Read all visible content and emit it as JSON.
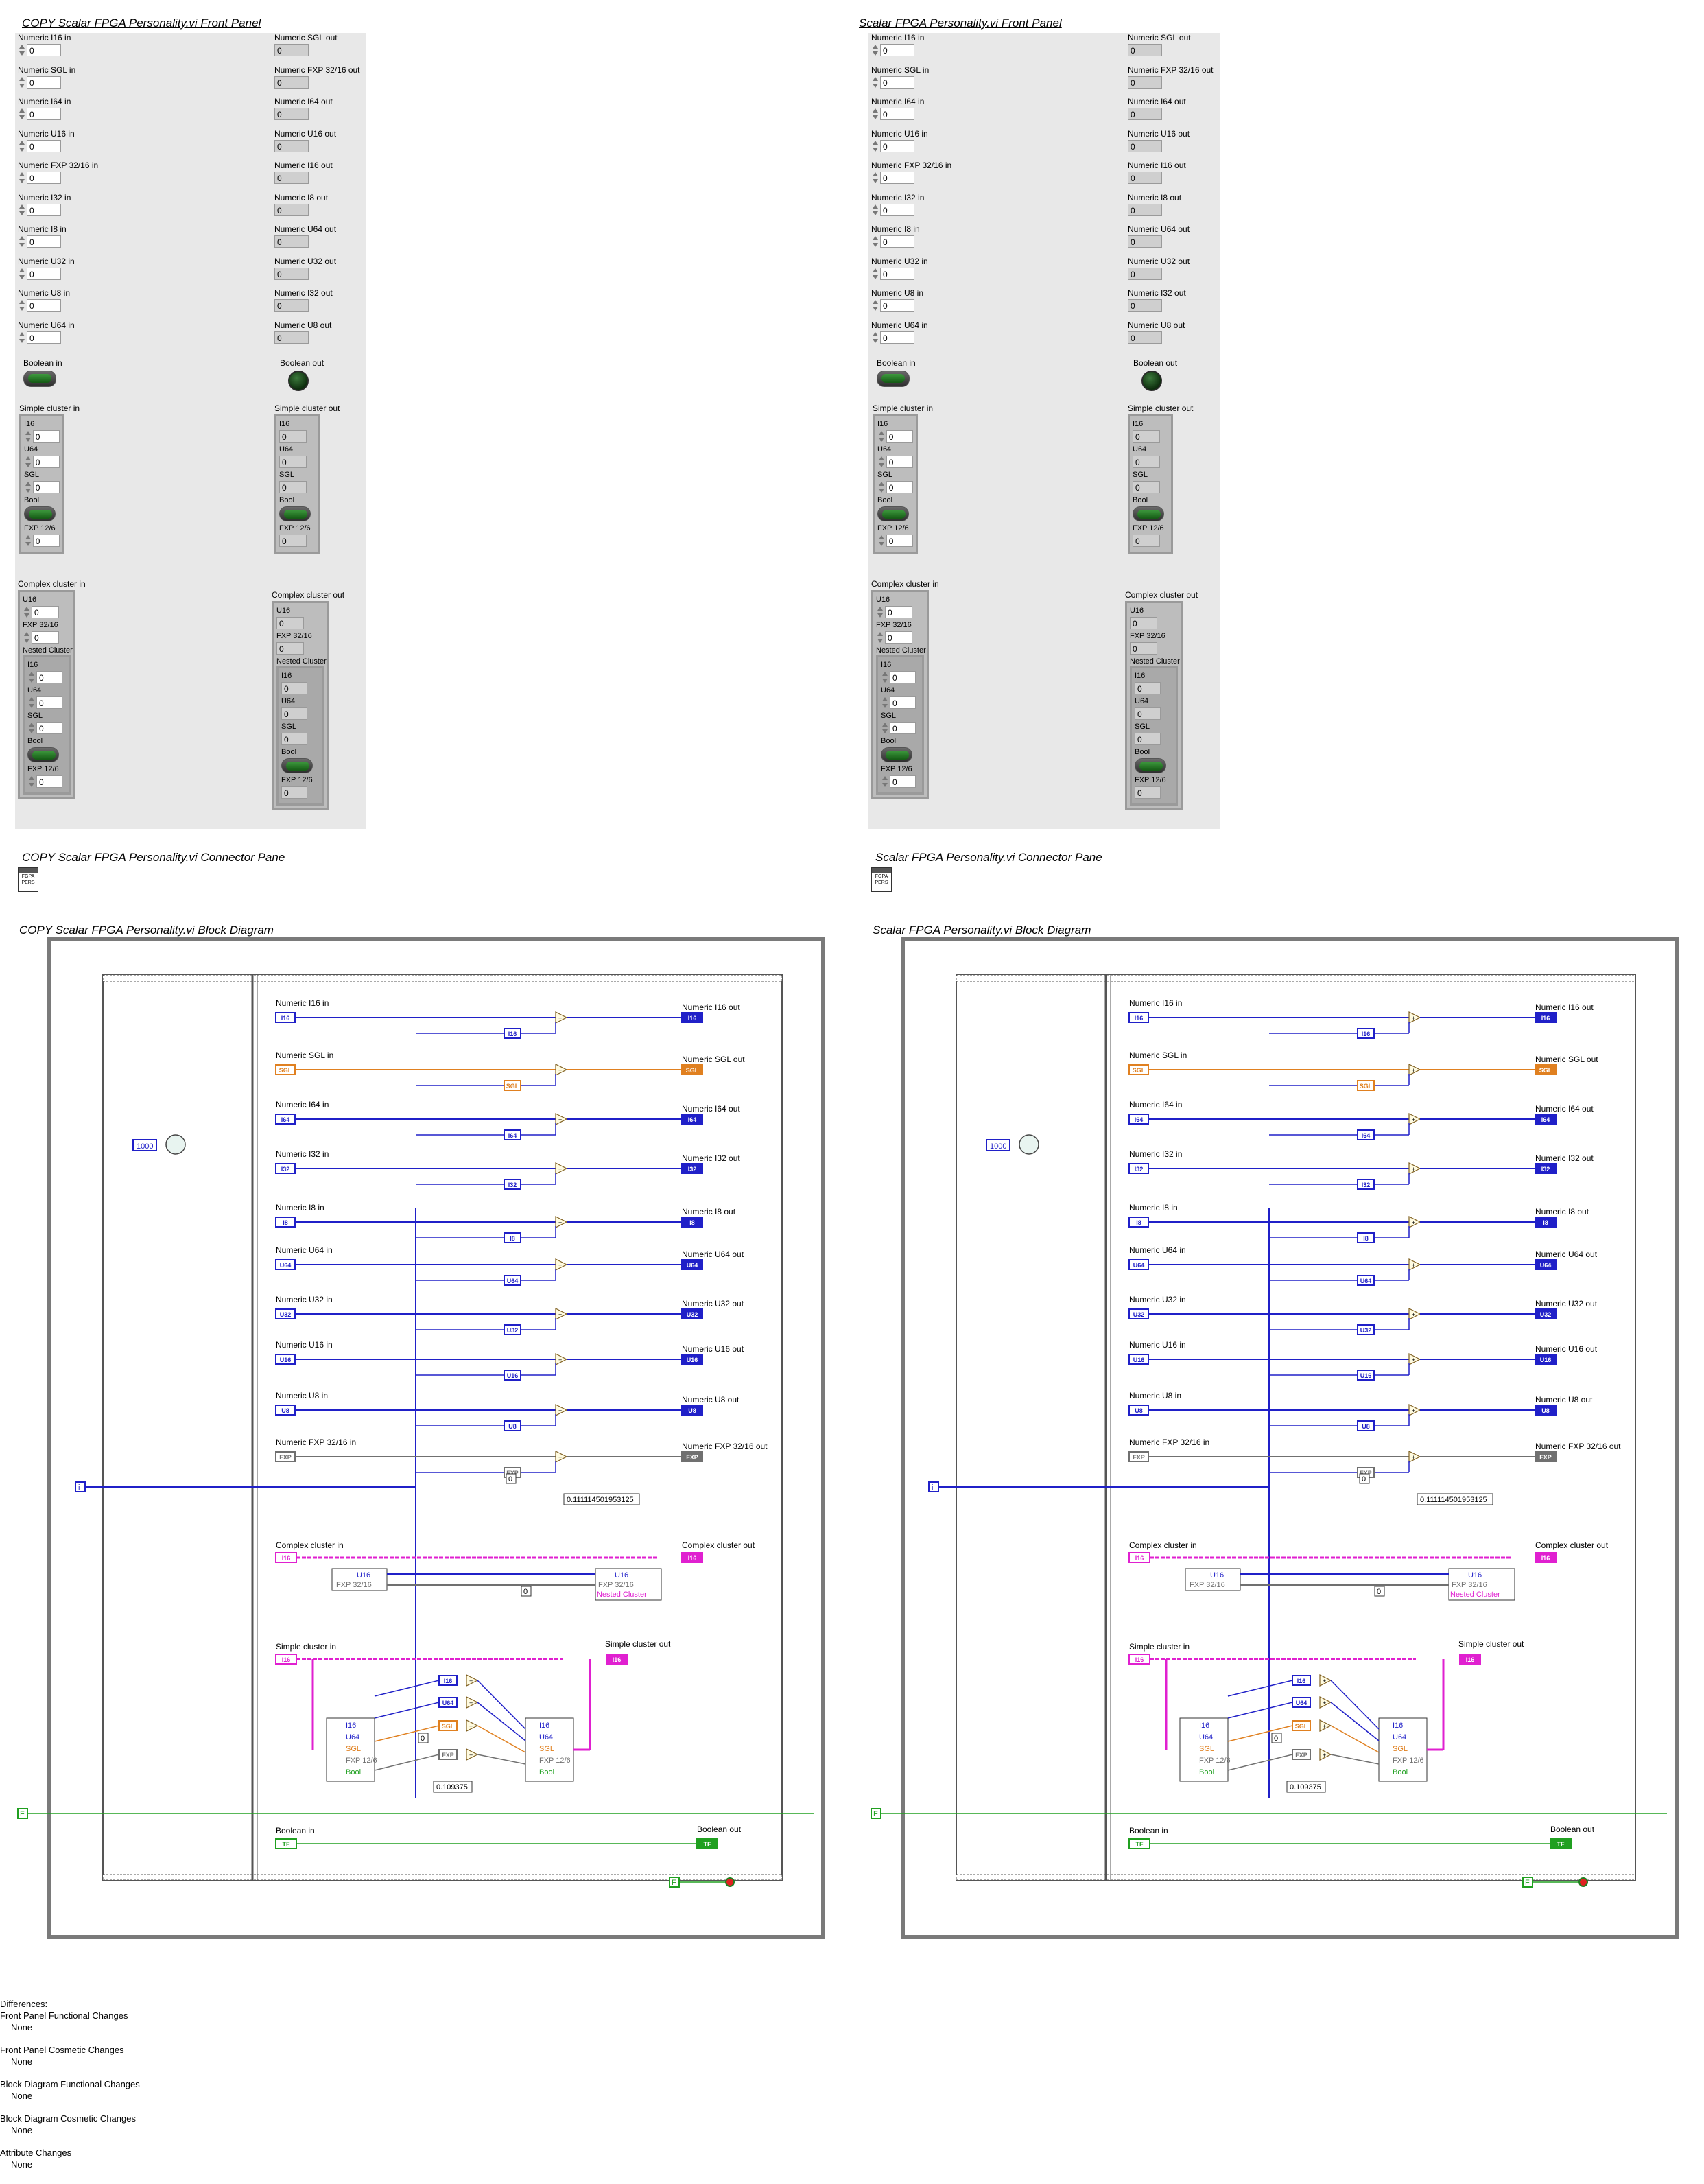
{
  "panels": [
    {
      "front_title": "COPY  Scalar FPGA Personality.vi Front Panel",
      "connector_title": "COPY  Scalar FPGA Personality.vi Connector Pane",
      "block_title": "COPY  Scalar FPGA Personality.vi Block Diagram"
    },
    {
      "front_title": "Scalar FPGA Personality.vi Front Panel",
      "connector_title": "Scalar FPGA Personality.vi Connector Pane",
      "block_title": "Scalar FPGA Personality.vi Block Diagram"
    }
  ],
  "front_panel": {
    "inputs": [
      {
        "label": "Numeric I16 in",
        "value": "0"
      },
      {
        "label": "Numeric SGL in",
        "value": "0"
      },
      {
        "label": "Numeric I64 in",
        "value": "0"
      },
      {
        "label": "Numeric U16 in",
        "value": "0"
      },
      {
        "label": "Numeric FXP 32/16 in",
        "value": "0"
      },
      {
        "label": "Numeric I32 in",
        "value": "0"
      },
      {
        "label": "Numeric I8 in",
        "value": "0"
      },
      {
        "label": "Numeric U32 in",
        "value": "0"
      },
      {
        "label": "Numeric U8 in",
        "value": "0"
      },
      {
        "label": "Numeric U64 in",
        "value": "0"
      }
    ],
    "outputs": [
      {
        "label": "Numeric SGL out",
        "value": "0"
      },
      {
        "label": "Numeric FXP 32/16 out",
        "value": "0"
      },
      {
        "label": "Numeric I64 out",
        "value": "0"
      },
      {
        "label": "Numeric U16 out",
        "value": "0"
      },
      {
        "label": "Numeric I16 out",
        "value": "0"
      },
      {
        "label": "Numeric I8 out",
        "value": "0"
      },
      {
        "label": "Numeric U64 out",
        "value": "0"
      },
      {
        "label": "Numeric U32 out",
        "value": "0"
      },
      {
        "label": "Numeric I32 out",
        "value": "0"
      },
      {
        "label": "Numeric U8 out",
        "value": "0"
      }
    ],
    "boolean_in": "Boolean in",
    "boolean_out": "Boolean out",
    "simple_cluster_in": {
      "label": "Simple cluster in",
      "items": [
        {
          "label": "I16",
          "value": "0"
        },
        {
          "label": "U64",
          "value": "0"
        },
        {
          "label": "SGL",
          "value": "0"
        },
        {
          "label": "Bool",
          "value": ""
        },
        {
          "label": "FXP 12/6",
          "value": "0"
        }
      ]
    },
    "simple_cluster_out": {
      "label": "Simple cluster out",
      "items": [
        {
          "label": "I16",
          "value": "0"
        },
        {
          "label": "U64",
          "value": "0"
        },
        {
          "label": "SGL",
          "value": "0"
        },
        {
          "label": "Bool",
          "value": ""
        },
        {
          "label": "FXP 12/6",
          "value": "0"
        }
      ]
    },
    "complex_cluster_in": {
      "label": "Complex cluster in",
      "u16": "U16",
      "u16_value": "0",
      "fxp": "FXP 32/16",
      "fxp_value": "0",
      "nested": "Nested Cluster"
    },
    "complex_cluster_out": {
      "label": "Complex cluster out",
      "u16": "U16",
      "u16_value": "0",
      "fxp": "FXP 32/16",
      "fxp_value": "0",
      "nested": "Nested Cluster"
    }
  },
  "connector_icon_text": [
    "FGPA",
    "PERS"
  ],
  "block_diagram": {
    "wait_ms": "1000",
    "iteration": "i",
    "stop_const": "F",
    "rows": [
      {
        "in": "Numeric I16 in",
        "out": "Numeric I16 out",
        "type": "I16",
        "in_term": "I16",
        "out_term": "I16",
        "color": "#2020c8"
      },
      {
        "in": "Numeric SGL in",
        "out": "Numeric SGL out",
        "type": "SGL",
        "in_term": "SGL",
        "out_term": "SGL",
        "color": "#e08020"
      },
      {
        "in": "Numeric I64 in",
        "out": "Numeric I64 out",
        "type": "I64",
        "in_term": "I64",
        "out_term": "I64",
        "color": "#2020c8"
      },
      {
        "in": "Numeric I32 in",
        "out": "Numeric I32 out",
        "type": "I32",
        "in_term": "I32",
        "out_term": "I32",
        "color": "#2020c8"
      },
      {
        "in": "Numeric I8 in",
        "out": "Numeric I8 out",
        "type": "I8",
        "in_term": "I8",
        "out_term": "I8",
        "color": "#2020c8"
      },
      {
        "in": "Numeric U64 in",
        "out": "Numeric U64 out",
        "type": "U64",
        "in_term": "U64",
        "out_term": "U64",
        "color": "#2020c8"
      },
      {
        "in": "Numeric U32 in",
        "out": "Numeric U32 out",
        "type": "U32",
        "in_term": "U32",
        "out_term": "U32",
        "color": "#2020c8"
      },
      {
        "in": "Numeric U16 in",
        "out": "Numeric U16 out",
        "type": "U16",
        "in_term": "U16",
        "out_term": "U16",
        "color": "#2020c8"
      },
      {
        "in": "Numeric U8 in",
        "out": "Numeric U8 out",
        "type": "U8",
        "in_term": "U8",
        "out_term": "U8",
        "color": "#2020c8"
      },
      {
        "in": "Numeric FXP 32/16 in",
        "out": "Numeric FXP 32/16 out",
        "type": "FXP",
        "in_term": "FXP",
        "out_term": "FXP",
        "color": "#707070"
      }
    ],
    "fxp_const_zero": "0",
    "fxp_const_value": "0.111114501953125",
    "complex_in": "Complex cluster in",
    "complex_out": "Complex cluster out",
    "complex_unbundle": [
      "U16",
      "FXP 32/16"
    ],
    "complex_bundle": [
      "U16",
      "FXP 32/16",
      "Nested Cluster"
    ],
    "complex_const": "0",
    "simple_in": "Simple cluster in",
    "simple_out": "Simple cluster out",
    "simple_unbundle": [
      "I16",
      "U64",
      "SGL",
      "FXP 12/6",
      "Bool"
    ],
    "simple_bundle": [
      "I16",
      "U64",
      "SGL",
      "FXP 12/6",
      "Bool"
    ],
    "simple_types": [
      "I16",
      "U64",
      "SGL",
      "FXP"
    ],
    "simple_const_zero": "0",
    "simple_const_value": "0.109375",
    "boolean_in": "Boolean in",
    "boolean_out": "Boolean out",
    "bool_in_term": "TF",
    "bool_out_term": "TF",
    "false_const": "F",
    "colors": {
      "int": "#2020c8",
      "sgl": "#e08020",
      "fxp": "#707070",
      "bool": "#20a020",
      "cluster": "#e020d0"
    }
  },
  "differences": {
    "title": "Differences:",
    "groups": [
      {
        "heading": "Front Panel Functional Changes",
        "value": "None"
      },
      {
        "heading": "Front Panel Cosmetic Changes",
        "value": "None"
      },
      {
        "heading": "Block Diagram Functional Changes",
        "value": "None"
      },
      {
        "heading": "Block Diagram Cosmetic Changes",
        "value": "None"
      },
      {
        "heading": "Attribute Changes",
        "value": "None"
      }
    ]
  }
}
